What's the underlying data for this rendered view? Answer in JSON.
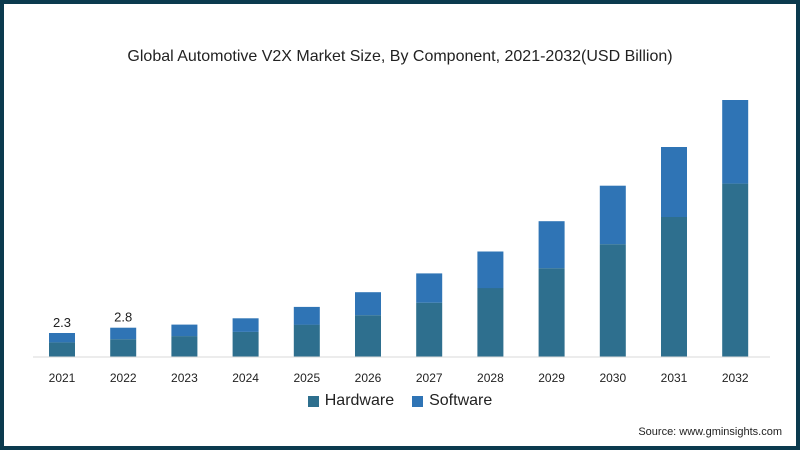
{
  "source_text": "Source: www.gminsights.com",
  "chart_data": {
    "type": "bar",
    "stacked": true,
    "title": "Global Automotive V2X Market Size, By Component, 2021-2032(USD Billion)",
    "categories": [
      "2021",
      "2022",
      "2023",
      "2024",
      "2025",
      "2026",
      "2027",
      "2028",
      "2029",
      "2030",
      "2031",
      "2032"
    ],
    "series": [
      {
        "name": "Hardware",
        "color": "#2e6f8e",
        "values": [
          1.4,
          1.7,
          2.0,
          2.4,
          3.1,
          4.0,
          5.2,
          6.6,
          8.5,
          10.8,
          13.4,
          16.6
        ]
      },
      {
        "name": "Software",
        "color": "#2f74b5",
        "values": [
          0.9,
          1.1,
          1.1,
          1.3,
          1.7,
          2.2,
          2.8,
          3.5,
          4.5,
          5.6,
          6.7,
          8.0
        ]
      }
    ],
    "data_labels": [
      {
        "category": "2021",
        "text": "2.3"
      },
      {
        "category": "2022",
        "text": "2.8"
      }
    ],
    "ylim": [
      0,
      24.6
    ],
    "grid": false,
    "legend_position": "bottom"
  }
}
